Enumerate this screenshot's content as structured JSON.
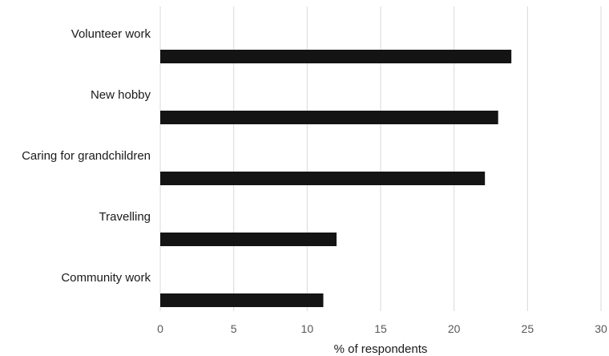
{
  "chart_data": {
    "type": "bar",
    "orientation": "horizontal",
    "categories": [
      "Volunteer work",
      "New hobby",
      "Caring for grandchildren",
      "Travelling",
      "Community work"
    ],
    "values": [
      23.9,
      23,
      22.1,
      12,
      11.1
    ],
    "xlabel": "% of respondents",
    "ylabel": "",
    "xlim": [
      0,
      30
    ],
    "ticks": [
      0,
      5,
      10,
      15,
      20,
      25,
      30
    ],
    "grid": "vertical",
    "bar_color": "#141414",
    "legend": "none"
  }
}
